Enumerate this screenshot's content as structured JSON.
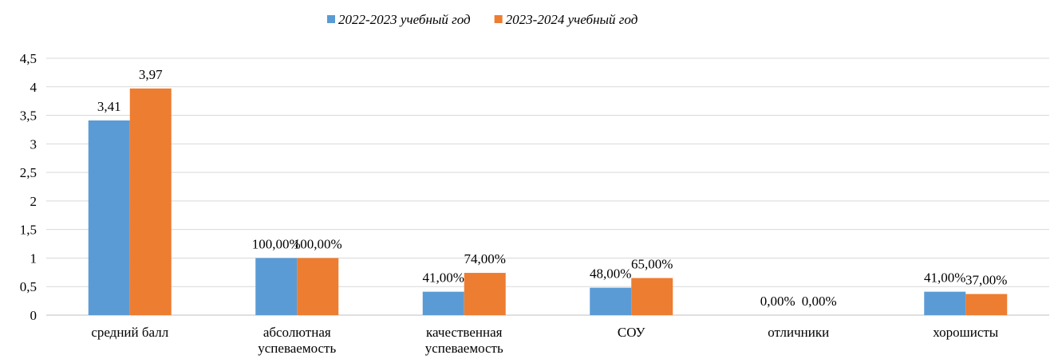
{
  "chart_data": {
    "type": "bar",
    "categories": [
      "средний балл",
      "абсолютная успеваемость",
      "качественная успеваемость",
      "СОУ",
      "отличники",
      "хорошисты"
    ],
    "series": [
      {
        "name": "2022-2023 учебный год",
        "color": "#5b9bd5",
        "values": [
          3.41,
          1,
          0.41,
          0.48,
          0,
          0.41
        ],
        "value_labels": [
          "3,41",
          "100,00%",
          "41,00%",
          "48,00%",
          "0,00%",
          "41,00%"
        ]
      },
      {
        "name": "2023-2024 учебный год",
        "color": "#ed7d31",
        "values": [
          3.97,
          1,
          0.74,
          0.65,
          0,
          0.37
        ],
        "value_labels": [
          "3,97",
          "100,00%",
          "74,00%",
          "65,00%",
          "0,00%",
          "37,00%"
        ]
      }
    ],
    "ylim": [
      0,
      4.5
    ],
    "yticks": [
      0,
      {
        "value": 0.5,
        "label": "0,5"
      },
      1,
      {
        "value": 1.5,
        "label": "1,5"
      },
      2,
      {
        "value": 2.5,
        "label": "2,5"
      },
      3,
      {
        "value": 3.5,
        "label": "3,5"
      },
      4,
      {
        "value": 4.5,
        "label": "4,5"
      }
    ],
    "grid": true,
    "legend": "top"
  }
}
